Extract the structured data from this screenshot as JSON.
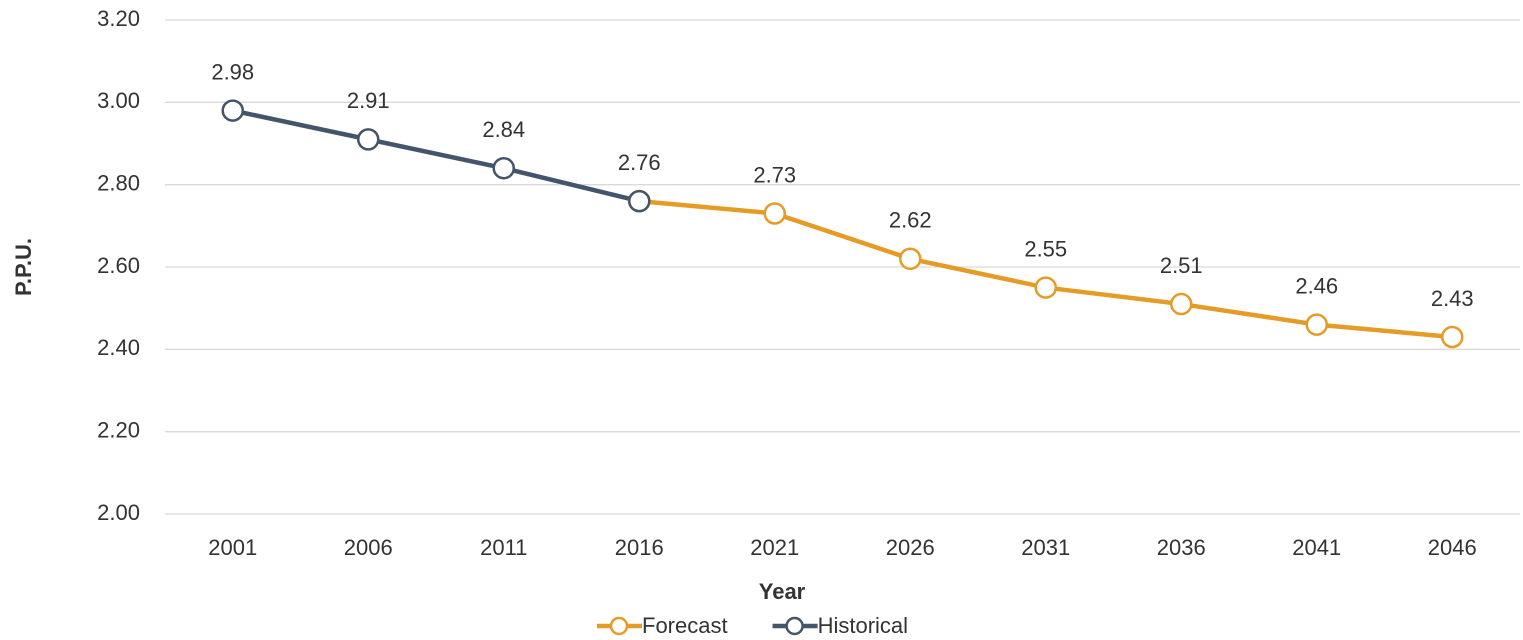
{
  "chart_data": {
    "type": "line",
    "x_label": "Year",
    "y_label": "P.P.U.",
    "categories": [
      "2001",
      "2006",
      "2011",
      "2016",
      "2021",
      "2026",
      "2031",
      "2036",
      "2041",
      "2046"
    ],
    "series": [
      {
        "name": "Forecast",
        "color": "#e59c27",
        "values": [
          null,
          null,
          null,
          2.76,
          2.73,
          2.62,
          2.55,
          2.51,
          2.46,
          2.43
        ]
      },
      {
        "name": "Historical",
        "color": "#44546a",
        "values": [
          2.98,
          2.91,
          2.84,
          2.76,
          null,
          null,
          null,
          null,
          null,
          null
        ]
      }
    ],
    "ylim": [
      2.0,
      3.2
    ],
    "yticks": [
      {
        "value": 2.0,
        "label": "2.00"
      },
      {
        "value": 2.2,
        "label": "2.20"
      },
      {
        "value": 2.4,
        "label": "2.40"
      },
      {
        "value": 2.6,
        "label": "2.60"
      },
      {
        "value": 2.8,
        "label": "2.80"
      },
      {
        "value": 3.0,
        "label": "3.00"
      },
      {
        "value": 3.2,
        "label": "3.20"
      }
    ],
    "grid": true,
    "legend": "bottom"
  }
}
